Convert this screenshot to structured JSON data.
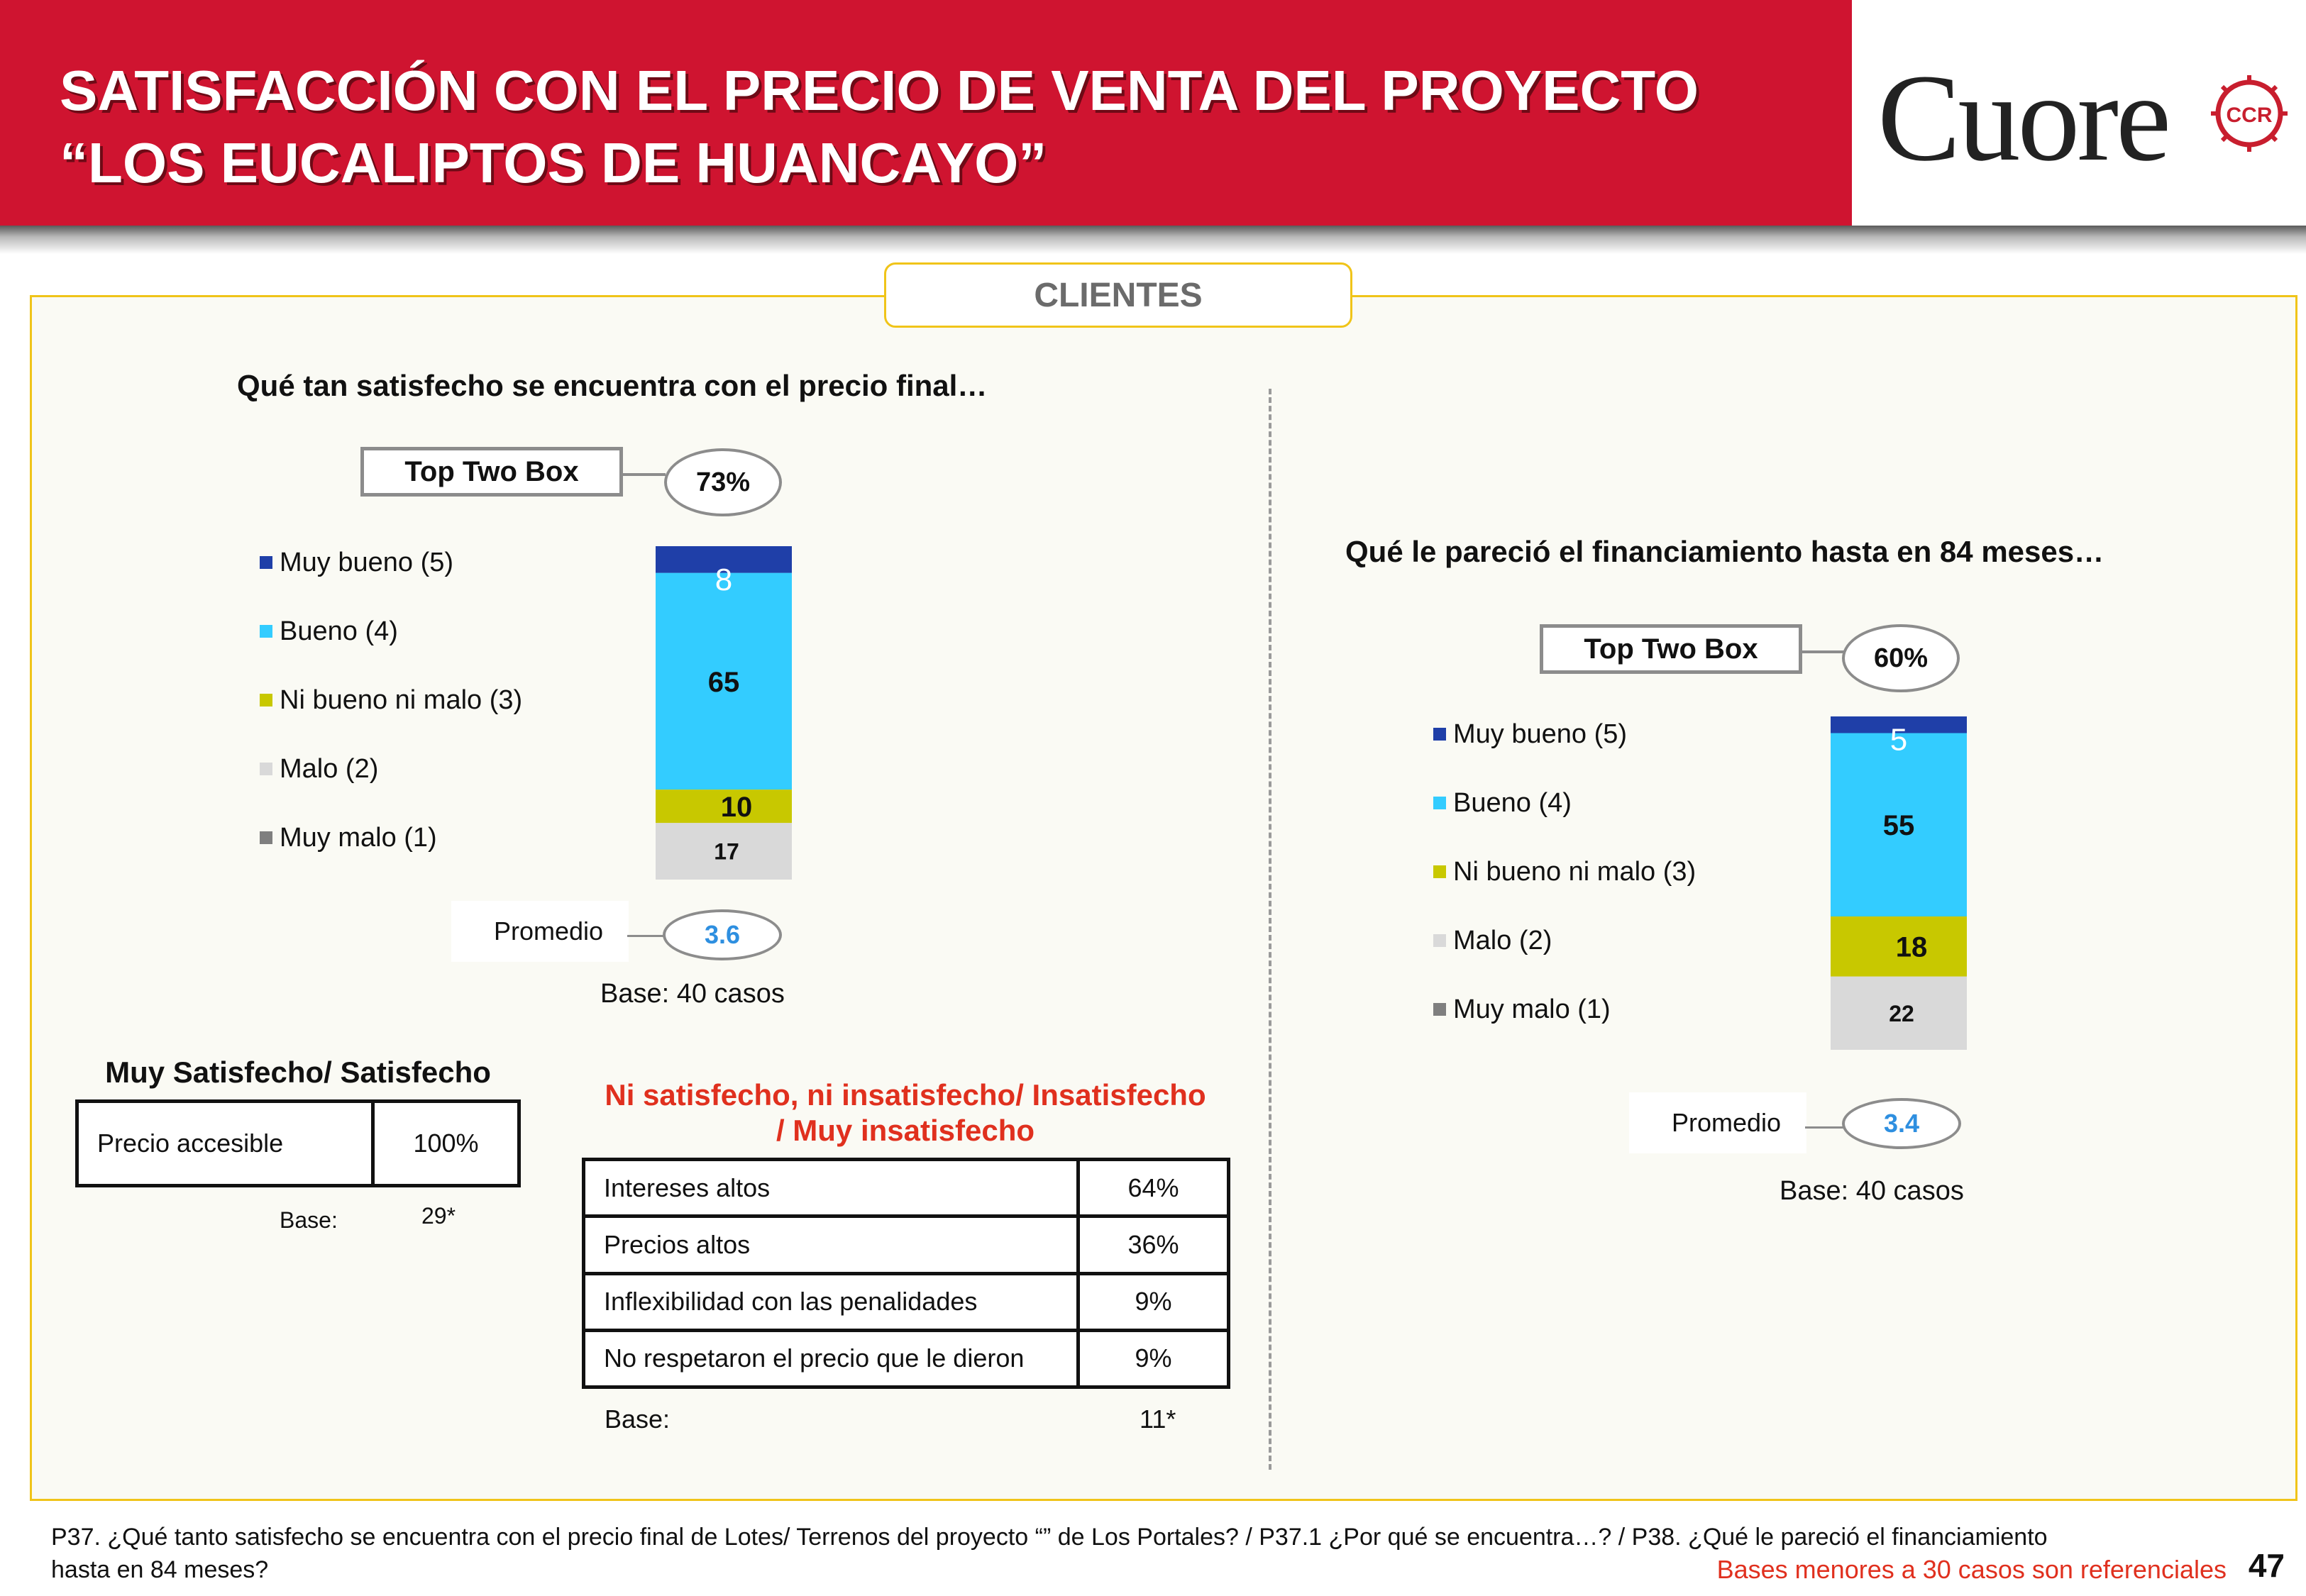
{
  "header": {
    "title_line1": "SATISFACCIÓN CON EL PRECIO DE VENTA DEL PROYECTO",
    "title_line2": "“LOS EUCALIPTOS DE HUANCAYO”",
    "logo_text": "Cuore",
    "logo_seal_text": "CCR",
    "band_color": "#cf1430"
  },
  "section_tab": "CLIENTES",
  "left": {
    "question": "Qué tan satisfecho  se encuentra con el precio final…",
    "top_two_box_label": "Top Two Box",
    "top_two_box_value": "73%",
    "legend": [
      "Muy bueno (5)",
      "Bueno (4)",
      "Ni bueno ni malo (3)",
      "Malo (2)",
      "Muy malo (1)"
    ],
    "promedio_label": "Promedio",
    "promedio_value": "3.6",
    "base": "Base:   40 casos"
  },
  "right": {
    "question": "Qué le pareció el financiamiento hasta en 84 meses…",
    "top_two_box_label": "Top Two Box",
    "top_two_box_value": "60%",
    "legend": [
      "Muy bueno (5)",
      "Bueno (4)",
      "Ni bueno ni malo (3)",
      "Malo (2)",
      "Muy malo (1)"
    ],
    "promedio_label": "Promedio",
    "promedio_value": "3.4",
    "base": "Base:   40 casos"
  },
  "colors": {
    "muy_bueno": "#1f3fa8",
    "bueno": "#33ccff",
    "ni_bueno": "#c8c800",
    "malo": "#d9d9d9",
    "muy_malo": "#7f7f7f",
    "panel_border": "#f0c419",
    "promedio_value": "#2e8fe0",
    "warning_text": "#e0301e"
  },
  "chart_data": [
    {
      "type": "bar",
      "stacked": true,
      "categories": [
        "Qué tan satisfecho  se encuentra con el precio final…"
      ],
      "series": [
        {
          "name": "Muy malo (1)",
          "values": [
            0
          ]
        },
        {
          "name": "Malo (2)",
          "values": [
            17
          ]
        },
        {
          "name": "Ni bueno ni malo (3)",
          "values": [
            10
          ]
        },
        {
          "name": "Bueno (4)",
          "values": [
            65
          ]
        },
        {
          "name": "Muy bueno (5)",
          "values": [
            8
          ]
        }
      ],
      "ylim": [
        0,
        100
      ],
      "legend": "left"
    },
    {
      "type": "bar",
      "stacked": true,
      "categories": [
        "Qué le pareció el financiamiento hasta en 84 meses…"
      ],
      "series": [
        {
          "name": "Muy malo (1)",
          "values": [
            0
          ]
        },
        {
          "name": "Malo (2)",
          "values": [
            22
          ]
        },
        {
          "name": "Ni bueno ni malo (3)",
          "values": [
            18
          ]
        },
        {
          "name": "Bueno (4)",
          "values": [
            55
          ]
        },
        {
          "name": "Muy bueno (5)",
          "values": [
            5
          ]
        }
      ],
      "ylim": [
        0,
        100
      ],
      "legend": "left"
    }
  ],
  "satisfied_table": {
    "title": "Muy Satisfecho/ Satisfecho",
    "rows": [
      {
        "reason": "Precio accesible",
        "value": "100%"
      }
    ],
    "base_label": "Base:",
    "base_value": "29*"
  },
  "dissatisfied_table": {
    "title_line1": "Ni satisfecho, ni insatisfecho/ Insatisfecho",
    "title_line2": "/ Muy insatisfecho",
    "rows": [
      {
        "reason": "Intereses altos",
        "value": "64%"
      },
      {
        "reason": "Precios altos",
        "value": "36%"
      },
      {
        "reason": "Inflexibilidad con las penalidades",
        "value": "9%"
      },
      {
        "reason": "No respetaron el precio que le dieron",
        "value": "9%"
      }
    ],
    "base_label": "Base:",
    "base_value": "11*"
  },
  "footnote_part1": "P37. ¿Qué tanto satisfecho se encuentra con el precio final de Lotes/ Terrenos del proyecto “” de  Los Portales? / P37.1 ¿Por qué se encuentra…? / P38. ¿Qué  le pareció el financiamiento",
  "footnote_part2": "hasta en 84 meses?",
  "bases_note": "Bases menores a 30 casos son referenciales",
  "page_number": "47"
}
